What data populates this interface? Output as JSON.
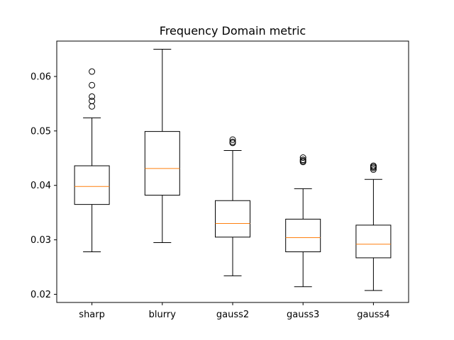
{
  "chart_data": {
    "type": "boxplot",
    "title": "Frequency Domain metric",
    "xlabel": "",
    "ylabel": "",
    "ylim": [
      0.0185,
      0.0665
    ],
    "yticks": [
      0.02,
      0.03,
      0.04,
      0.05,
      0.06
    ],
    "ytick_labels": [
      "0.02",
      "0.03",
      "0.04",
      "0.05",
      "0.06"
    ],
    "grid": false,
    "categories": [
      "sharp",
      "blurry",
      "gauss2",
      "gauss3",
      "gauss4"
    ],
    "boxes": [
      {
        "whisker_low": 0.0278,
        "q1": 0.0365,
        "median": 0.0398,
        "q3": 0.0436,
        "whisker_high": 0.0524,
        "outliers": [
          0.0545,
          0.0555,
          0.0563,
          0.0584,
          0.0609
        ]
      },
      {
        "whisker_low": 0.0295,
        "q1": 0.0382,
        "median": 0.0431,
        "q3": 0.0499,
        "whisker_high": 0.065,
        "outliers": []
      },
      {
        "whisker_low": 0.0234,
        "q1": 0.0305,
        "median": 0.033,
        "q3": 0.0372,
        "whisker_high": 0.0464,
        "outliers": [
          0.0478,
          0.048,
          0.0484
        ]
      },
      {
        "whisker_low": 0.0214,
        "q1": 0.0278,
        "median": 0.0304,
        "q3": 0.0338,
        "whisker_high": 0.0394,
        "outliers": [
          0.0443,
          0.0445,
          0.0447,
          0.0451
        ]
      },
      {
        "whisker_low": 0.0207,
        "q1": 0.0267,
        "median": 0.0292,
        "q3": 0.0327,
        "whisker_high": 0.0411,
        "outliers": [
          0.0429,
          0.0432,
          0.0434,
          0.0436
        ]
      }
    ],
    "colors": {
      "box": "#000000",
      "median": "#ff7f0e",
      "outlier": "#000000"
    }
  }
}
